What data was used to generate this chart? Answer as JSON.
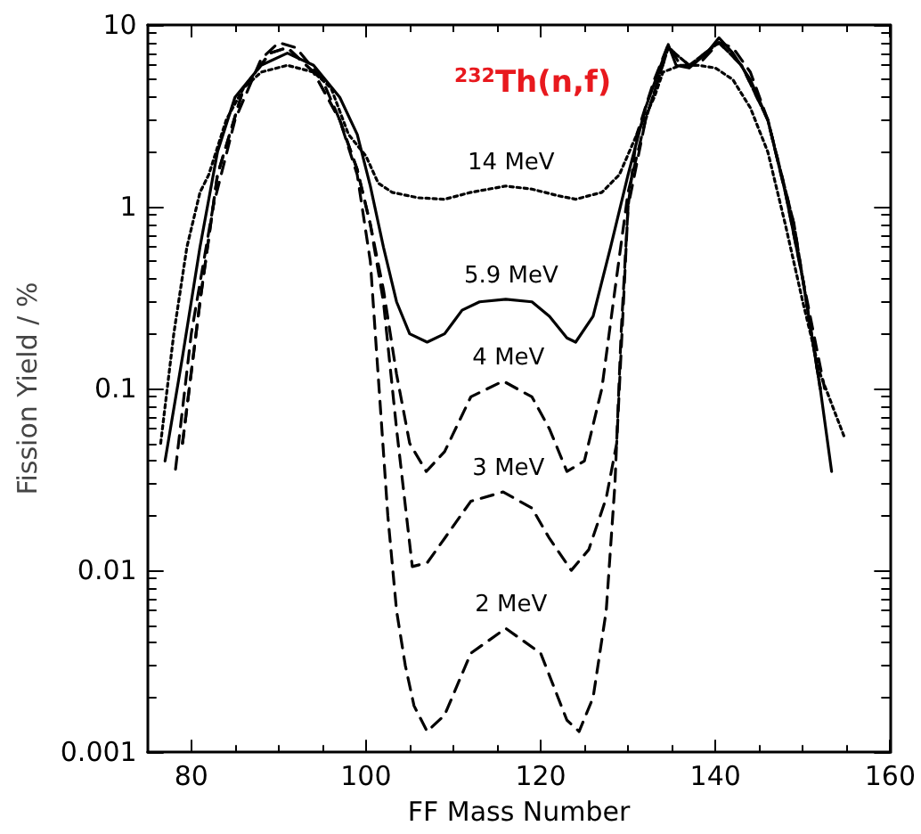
{
  "chart_data": {
    "type": "line",
    "title": "$^{232}$Th(n,f)",
    "xlabel": "FF Mass Number",
    "ylabel": "Fission Yield / %",
    "log": "y",
    "grid": false,
    "legend": false,
    "marker": "none",
    "xlim": [
      75,
      160
    ],
    "xticks": [
      80,
      100,
      120,
      140,
      160
    ],
    "ylim": [
      0.001,
      10
    ],
    "yticks": [
      0.001,
      0.01,
      0.1,
      1,
      10
    ],
    "series": [
      {
        "name": "14 MeV",
        "color": "#000000",
        "line_style": "dotted",
        "x": [
          76.5,
          78,
          79.5,
          81,
          82,
          84,
          86,
          88,
          91,
          94,
          96,
          98,
          100,
          101.4,
          103,
          106,
          109,
          112,
          116,
          119,
          122,
          124,
          127,
          129,
          131,
          133,
          134,
          136,
          138,
          140,
          142,
          144,
          146,
          148,
          150,
          152,
          154.7
        ],
        "values": [
          0.05,
          0.2,
          0.6,
          1.2,
          1.5,
          3,
          4.5,
          5.5,
          6,
          5.5,
          4.5,
          2.5,
          1.9,
          1.35,
          1.2,
          1.12,
          1.1,
          1.2,
          1.3,
          1.25,
          1.15,
          1.1,
          1.2,
          1.5,
          2.5,
          4,
          5.5,
          6,
          6,
          5.8,
          5,
          3.5,
          2,
          0.8,
          0.3,
          0.12,
          0.055
        ]
      },
      {
        "name": "5.9 MeV",
        "color": "#000000",
        "line_style": "solid",
        "x": [
          77,
          79,
          81,
          83,
          85,
          88,
          91,
          94,
          97,
          99,
          100.5,
          102,
          103.5,
          105,
          107,
          109,
          111,
          113,
          116,
          119,
          121,
          123,
          124,
          126,
          128,
          130,
          132,
          134.6,
          135.5,
          137,
          139,
          140.4,
          142,
          144,
          146,
          148,
          150,
          152,
          153.3
        ],
        "values": [
          0.04,
          0.15,
          0.6,
          2,
          4,
          6,
          7,
          6,
          4,
          2.5,
          1.3,
          0.6,
          0.3,
          0.2,
          0.18,
          0.2,
          0.27,
          0.3,
          0.31,
          0.3,
          0.25,
          0.19,
          0.18,
          0.25,
          0.6,
          1.5,
          3.5,
          7.8,
          6,
          5.8,
          7,
          8.5,
          7,
          5,
          3,
          1.2,
          0.4,
          0.1,
          0.035
        ]
      },
      {
        "name": "4 MeV",
        "color": "#000000",
        "line_style": "dashed",
        "x": [
          79,
          81,
          83,
          86,
          89,
          91,
          94,
          97,
          99,
          100.5,
          102,
          103.5,
          105,
          106.9,
          109,
          112,
          115.7,
          119,
          121,
          123,
          125,
          127,
          128.5,
          130,
          132,
          134.6,
          137,
          140.4,
          143,
          146,
          149,
          152
        ],
        "values": [
          0.05,
          0.3,
          1.5,
          4.5,
          7,
          7.5,
          5.5,
          3,
          1.6,
          0.8,
          0.35,
          0.12,
          0.05,
          0.035,
          0.045,
          0.09,
          0.11,
          0.09,
          0.06,
          0.035,
          0.04,
          0.1,
          0.35,
          1.2,
          3,
          7.5,
          6,
          8,
          6,
          3,
          0.8,
          0.1
        ]
      },
      {
        "name": "3 MeV",
        "color": "#000000",
        "line_style": "dashed",
        "x": [
          79,
          81,
          83,
          86,
          89,
          91,
          94,
          97,
          99,
          100.5,
          102,
          103.5,
          105.3,
          107,
          109,
          112,
          115.7,
          119,
          121,
          123.5,
          125.5,
          127.5,
          128.7,
          130,
          132,
          134.6,
          137,
          140.4,
          143,
          146,
          149,
          152
        ],
        "values": [
          0.05,
          0.3,
          1.5,
          4.5,
          7,
          7.5,
          5.5,
          3,
          1.6,
          0.8,
          0.3,
          0.06,
          0.0105,
          0.011,
          0.015,
          0.024,
          0.027,
          0.022,
          0.015,
          0.01,
          0.013,
          0.025,
          0.05,
          1,
          3,
          7.5,
          6,
          8,
          6,
          3,
          0.8,
          0.1
        ]
      },
      {
        "name": "2 MeV",
        "color": "#000000",
        "line_style": "dashed",
        "x": [
          78.2,
          80,
          82.5,
          85,
          88,
          90,
          92,
          95,
          97,
          99,
          100.5,
          101.5,
          102.5,
          103.5,
          104.5,
          105.5,
          107,
          109,
          112,
          116,
          120,
          123,
          124.4,
          126,
          127.5,
          128.5,
          129.2,
          130,
          131,
          133,
          134.6,
          136,
          138,
          140.4,
          142,
          144,
          146,
          148,
          150,
          152.5
        ],
        "values": [
          0.036,
          0.2,
          1,
          3,
          6.5,
          8,
          7.5,
          5,
          3,
          1.5,
          0.5,
          0.1,
          0.02,
          0.006,
          0.003,
          0.0018,
          0.0013,
          0.0016,
          0.0035,
          0.0048,
          0.0035,
          0.0015,
          0.0013,
          0.002,
          0.006,
          0.03,
          0.2,
          1,
          2.5,
          5,
          7.8,
          6,
          6,
          8,
          7.5,
          5.5,
          3,
          1.2,
          0.4,
          0.1
        ]
      }
    ]
  }
}
